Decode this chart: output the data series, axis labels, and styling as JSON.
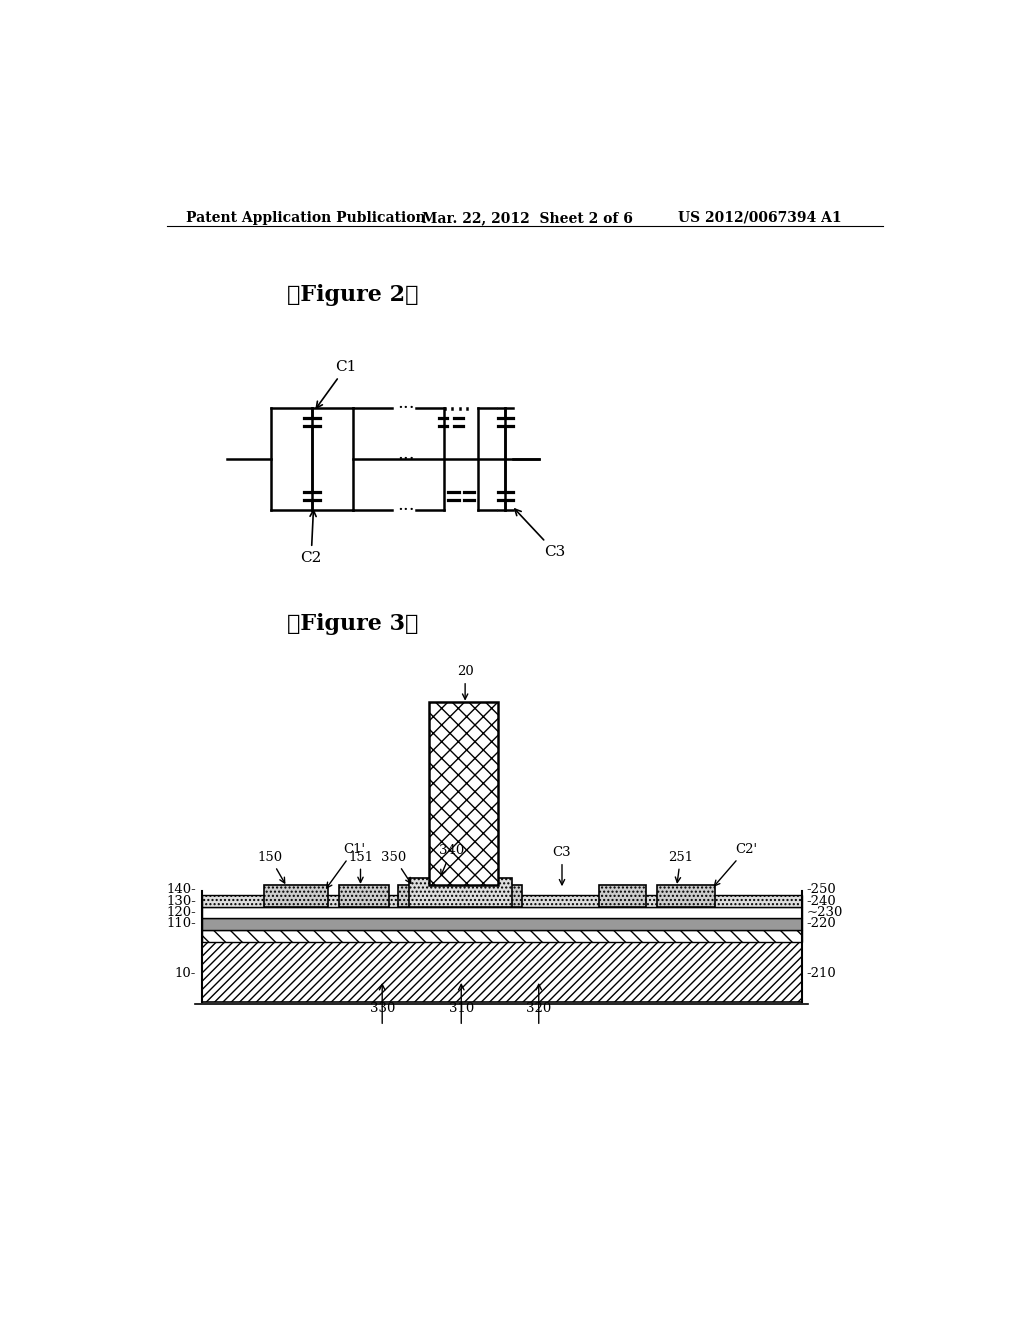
{
  "bg_color": "#ffffff",
  "header_left": "Patent Application Publication",
  "header_mid": "Mar. 22, 2012  Sheet 2 of 6",
  "header_right": "US 2012/0067394 A1",
  "fig2_label": "【Figure 2】",
  "fig3_label": "【Figure 3】",
  "text_color": "#000000"
}
